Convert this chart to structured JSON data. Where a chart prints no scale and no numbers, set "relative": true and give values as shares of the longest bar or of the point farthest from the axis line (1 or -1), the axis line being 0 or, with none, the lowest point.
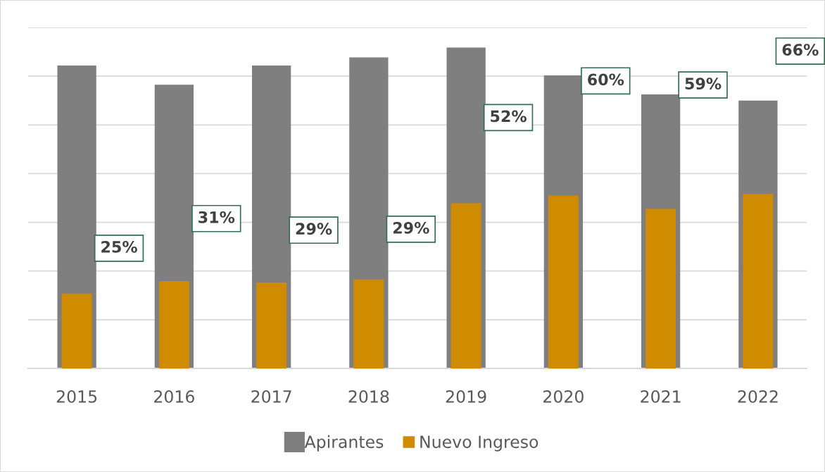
{
  "chart_data": {
    "type": "bar",
    "categories": [
      "2015",
      "2016",
      "2017",
      "2018",
      "2019",
      "2020",
      "2021",
      "2022"
    ],
    "series": [
      {
        "name": "Apirantes",
        "color": "#7f7f7f",
        "values": [
          0.944,
          0.884,
          0.944,
          0.969,
          1,
          0.913,
          0.854,
          0.835
        ]
      },
      {
        "name": "Nuevo Ingreso",
        "color": "#d08c00",
        "values": [
          0.233,
          0.272,
          0.268,
          0.277,
          0.515,
          0.539,
          0.497,
          0.544
        ]
      }
    ],
    "relative": true,
    "grid": "y",
    "legend": "bottom",
    "annotations": [
      "25%",
      "31%",
      "29%",
      "29%",
      "52%",
      "60%",
      "59%",
      "66%"
    ]
  }
}
